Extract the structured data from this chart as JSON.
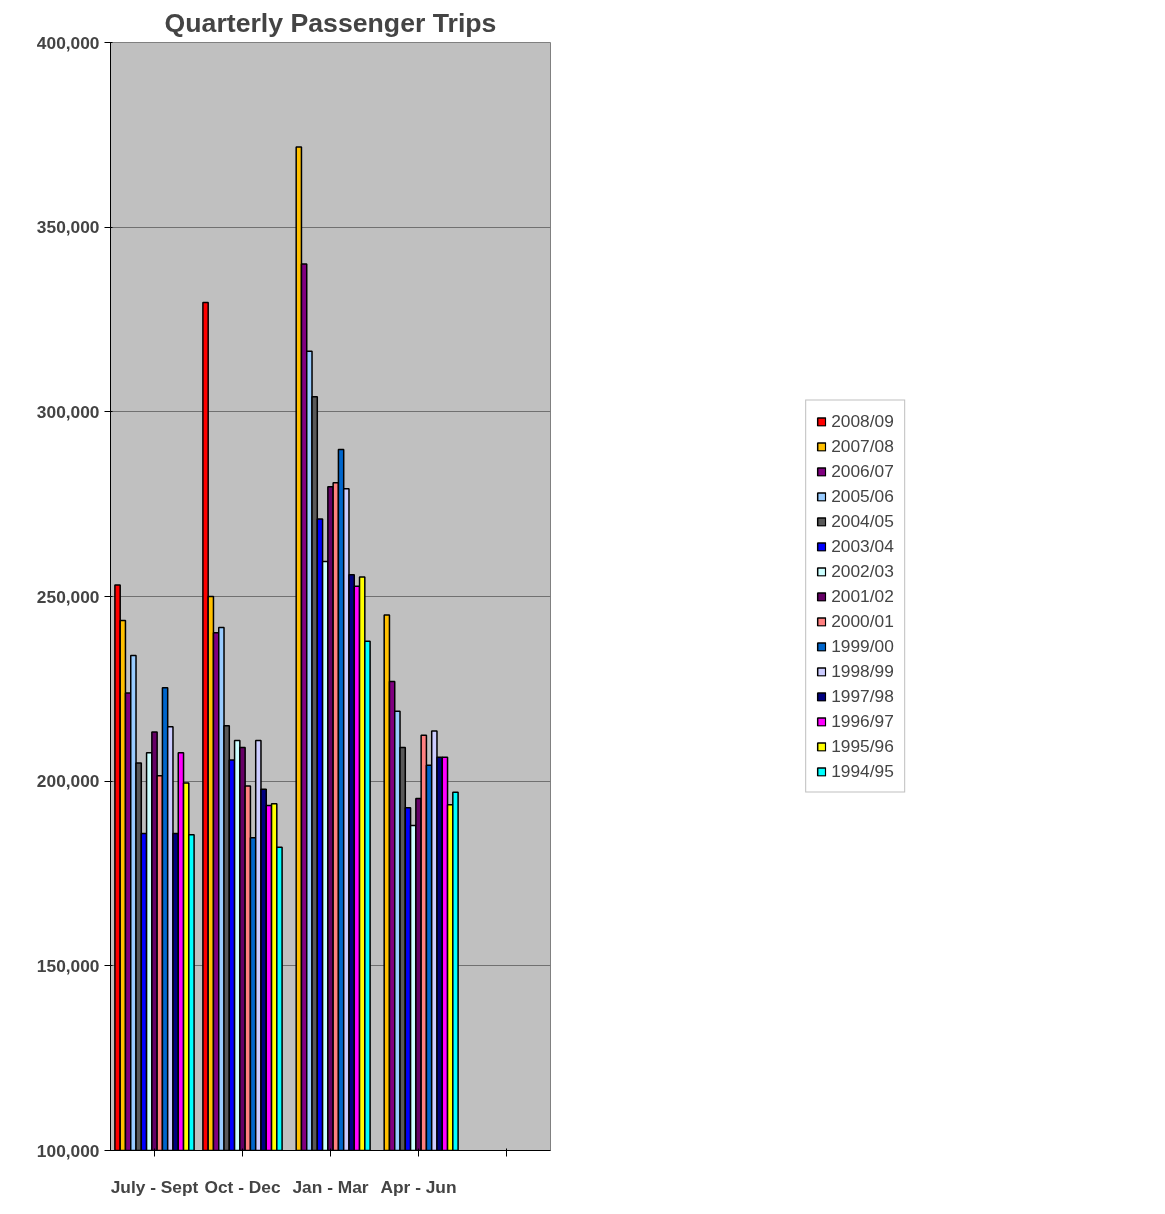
{
  "chart_data": {
    "type": "bar",
    "title": "Quarterly Passenger Trips",
    "categories": [
      "July - Sept",
      "Oct - Dec",
      "Jan - Mar",
      "Apr - Jun",
      null
    ],
    "ylim": [
      100000,
      400000
    ],
    "yticks": [
      {
        "value": 100000,
        "label": "100,000"
      },
      {
        "value": 150000,
        "label": "150,000"
      },
      {
        "value": 200000,
        "label": "200,000"
      },
      {
        "value": 250000,
        "label": "250,000"
      },
      {
        "value": 300000,
        "label": "300,000"
      },
      {
        "value": 350000,
        "label": "350,000"
      },
      {
        "value": 400000,
        "label": "400,000"
      }
    ],
    "grid": "y",
    "legend": "right",
    "series": [
      {
        "name": "2008/09",
        "color": "#ff0000",
        "values": [
          253100,
          329600,
          null,
          null,
          null
        ]
      },
      {
        "name": "2007/08",
        "color": "#ffc000",
        "values": [
          243500,
          250000,
          371700,
          245000,
          null
        ]
      },
      {
        "name": "2006/07",
        "color": "#800080",
        "values": [
          223900,
          240200,
          340000,
          227000,
          null
        ]
      },
      {
        "name": "2005/06",
        "color": "#99ccff",
        "values": [
          234000,
          241600,
          316400,
          218900,
          null
        ]
      },
      {
        "name": "2004/05",
        "color": "#595959",
        "values": [
          204900,
          215000,
          304100,
          209100,
          null
        ]
      },
      {
        "name": "2003/04",
        "color": "#0000ff",
        "values": [
          185800,
          205700,
          271000,
          192800,
          null
        ]
      },
      {
        "name": "2002/03",
        "color": "#ccffff",
        "values": [
          207700,
          211000,
          259500,
          188000,
          null
        ]
      },
      {
        "name": "2001/02",
        "color": "#660066",
        "values": [
          213300,
          209100,
          279700,
          195300,
          null
        ]
      },
      {
        "name": "2000/01",
        "color": "#ff8080",
        "values": [
          201500,
          198700,
          280800,
          212400,
          null
        ]
      },
      {
        "name": "1999/00",
        "color": "#0066cc",
        "values": [
          225300,
          184700,
          289800,
          204300,
          null
        ]
      },
      {
        "name": "1998/99",
        "color": "#ccccff",
        "values": [
          214700,
          211000,
          279200,
          213600,
          null
        ]
      },
      {
        "name": "1997/98",
        "color": "#000080",
        "values": [
          185800,
          197800,
          255900,
          206500,
          null
        ]
      },
      {
        "name": "1996/97",
        "color": "#ff00ff",
        "values": [
          207700,
          193400,
          252800,
          206500,
          null
        ]
      },
      {
        "name": "1995/96",
        "color": "#ffff00",
        "values": [
          199500,
          193900,
          255300,
          193600,
          null
        ]
      },
      {
        "name": "1994/95",
        "color": "#00ffff",
        "values": [
          185500,
          182100,
          237900,
          197000,
          null
        ]
      }
    ]
  }
}
